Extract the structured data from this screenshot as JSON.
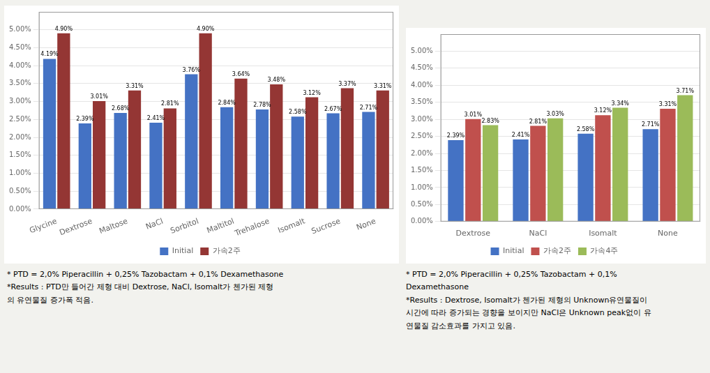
{
  "chart_data": [
    {
      "type": "bar",
      "categories": [
        "Glycine",
        "Dextrose",
        "Maltose",
        "NaCl",
        "Sorbitol",
        "Maltitol",
        "Trehalose",
        "Isomalt",
        "Sucrose",
        "None"
      ],
      "series": [
        {
          "name": "Initial",
          "color": "#4472C4",
          "values": [
            4.19,
            2.39,
            2.68,
            2.41,
            3.76,
            2.84,
            2.78,
            2.58,
            2.67,
            2.71
          ],
          "value_labels": [
            "4.19%",
            "2.39%",
            "2.68%",
            "2.41%",
            "3.76%",
            "2.84%",
            "2.78%",
            "2.58%",
            "2.67%",
            "2.71%"
          ]
        },
        {
          "name": "가속2주",
          "color": "#943634",
          "values": [
            4.9,
            3.01,
            3.31,
            2.81,
            4.9,
            3.64,
            3.48,
            3.12,
            3.37,
            3.31
          ],
          "value_labels": [
            "4.90%",
            "3.01%",
            "3.31%",
            "2.81%",
            "4.90%",
            "3.64%",
            "3.48%",
            "3.12%",
            "3.37%",
            "3.31%"
          ]
        }
      ],
      "ylim": [
        0,
        5.5
      ],
      "yticks": [
        {
          "value": 0,
          "label": "0.00%"
        },
        {
          "value": 0.5,
          "label": "0.50%"
        },
        {
          "value": 1,
          "label": "1.00%"
        },
        {
          "value": 1.5,
          "label": "1.50%"
        },
        {
          "value": 2,
          "label": "2.00%"
        },
        {
          "value": 2.5,
          "label": "2.50%"
        },
        {
          "value": 3,
          "label": "3.00%"
        },
        {
          "value": 3.5,
          "label": "3.50%"
        },
        {
          "value": 4,
          "label": "4.00%"
        },
        {
          "value": 4.5,
          "label": "4.50%"
        },
        {
          "value": 5,
          "label": "5.00%"
        }
      ],
      "grid": true,
      "legend": "bottom",
      "data_labels": true,
      "annotations": [
        "* PTD = 2,0% Piperacillin + 0,25% Tazobactam + 0,1% Dexamethasone",
        "*Results : PTD만 들어간 제형 대비 Dextrose, NaCl, Isomalt가 첸가된 제형",
        "의 유연물질 증가폭 적음."
      ]
    },
    {
      "type": "bar",
      "categories": [
        "Dextrose",
        "NaCl",
        "Isomalt",
        "None"
      ],
      "series": [
        {
          "name": "Initial",
          "color": "#4472C4",
          "values": [
            2.39,
            2.41,
            2.58,
            2.71
          ],
          "value_labels": [
            "2.39%",
            "2.41%",
            "2.58%",
            "2.71%"
          ]
        },
        {
          "name": "가속2주",
          "color": "#C0504D",
          "values": [
            3.01,
            2.81,
            3.12,
            3.31
          ],
          "value_labels": [
            "3.01%",
            "2.81%",
            "3.12%",
            "3.31%"
          ]
        },
        {
          "name": "가속4주",
          "color": "#9BBB59",
          "values": [
            2.83,
            3.03,
            3.34,
            3.71
          ],
          "value_labels": [
            "2.83%",
            "3.03%",
            "3.34%",
            "3.71%"
          ]
        }
      ],
      "ylim": [
        0,
        5.5
      ],
      "yticks": [
        {
          "value": 0,
          "label": "0.00%"
        },
        {
          "value": 0.5,
          "label": "0.50%"
        },
        {
          "value": 1,
          "label": "1.00%"
        },
        {
          "value": 1.5,
          "label": "1.50%"
        },
        {
          "value": 2,
          "label": "2.00%"
        },
        {
          "value": 2.5,
          "label": "2.50%"
        },
        {
          "value": 3,
          "label": "3.00%"
        },
        {
          "value": 3.5,
          "label": "3.50%"
        },
        {
          "value": 4,
          "label": "4.00%"
        },
        {
          "value": 4.5,
          "label": "4.50%"
        },
        {
          "value": 5,
          "label": "5.00%"
        }
      ],
      "grid": true,
      "legend": "bottom",
      "data_labels": true,
      "annotations": [
        "* PTD = 2,0% Piperacillin + 0,25% Tazobactam + 0,1%",
        "Dexamethasone",
        "*Results : Dextrose, Isomalt가 첸가된 제형의 Unknown유연물질이",
        "시간에 따라 증가되는 경향을 보이지만 NaCl은 Unknown peak없이 유",
        "연물질 감소효과를 가지고 있음."
      ]
    }
  ]
}
